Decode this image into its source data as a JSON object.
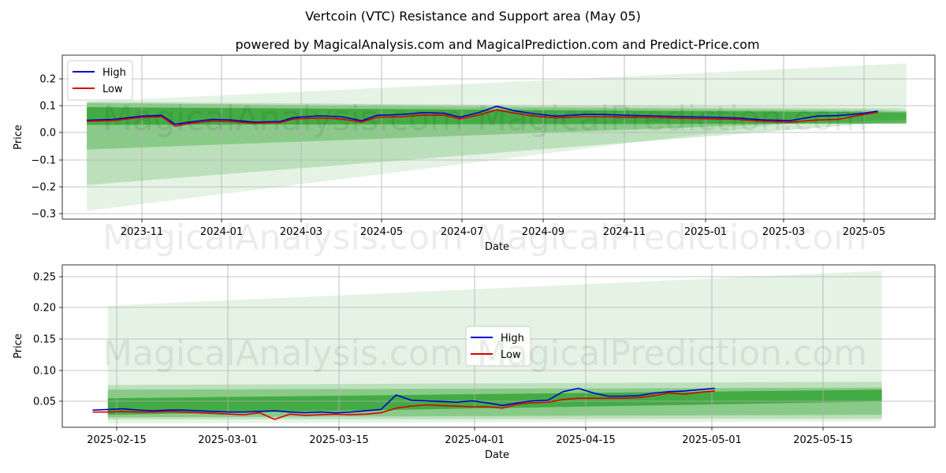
{
  "figure": {
    "title": "Vertcoin (VTC) Resistance and Support area (May 05)",
    "subtitle": "powered by MagicalAnalysis.com and MagicalPrediction.com and Predict-Price.com",
    "watermarks": [
      "MagicalAnalysis.com",
      "MagicalPrediction.com"
    ]
  },
  "colors": {
    "high": "#0000cc",
    "low": "#dd0000",
    "band": "#2ca02c",
    "grid": "#b0b0b0"
  },
  "chart_data": [
    {
      "type": "line",
      "xlabel": "Date",
      "ylabel": "Price",
      "x_tick_labels": [
        "2023-11",
        "2024-01",
        "2024-03",
        "2024-05",
        "2024-07",
        "2024-09",
        "2024-11",
        "2025-01",
        "2025-03",
        "2025-05"
      ],
      "y_tick_labels": [
        "0.2",
        "0.1",
        "0.0",
        "−0.1",
        "−0.2",
        "−0.3"
      ],
      "xlim": [
        "2023-09-13",
        "2025-06-15"
      ],
      "ylim": [
        -0.315,
        0.285
      ],
      "legend": {
        "position": "upper-left",
        "entries": [
          "High",
          "Low"
        ]
      },
      "grid": true,
      "series": [
        {
          "name": "High",
          "x": [
            "2023-10-01",
            "2023-10-20",
            "2023-11-10",
            "2023-11-25",
            "2023-12-05",
            "2023-12-15",
            "2024-01-01",
            "2024-01-15",
            "2024-02-01",
            "2024-02-20",
            "2024-03-01",
            "2024-03-20",
            "2024-04-05",
            "2024-04-20",
            "2024-05-01",
            "2024-05-20",
            "2024-06-05",
            "2024-06-20",
            "2024-07-01",
            "2024-07-15",
            "2024-07-28",
            "2024-08-10",
            "2024-08-25",
            "2024-09-10",
            "2024-09-30",
            "2024-10-15",
            "2024-11-01",
            "2024-11-20",
            "2024-12-10",
            "2025-01-01",
            "2025-01-20",
            "2025-02-10",
            "2025-03-01",
            "2025-03-20",
            "2025-04-05",
            "2025-04-20",
            "2025-05-04"
          ],
          "values": [
            0.047,
            0.05,
            0.062,
            0.065,
            0.032,
            0.04,
            0.05,
            0.048,
            0.04,
            0.042,
            0.057,
            0.063,
            0.06,
            0.045,
            0.065,
            0.068,
            0.075,
            0.072,
            0.058,
            0.075,
            0.098,
            0.082,
            0.07,
            0.062,
            0.068,
            0.068,
            0.065,
            0.063,
            0.06,
            0.058,
            0.055,
            0.048,
            0.046,
            0.062,
            0.064,
            0.07,
            0.08
          ]
        },
        {
          "name": "Low",
          "x": [
            "2023-10-01",
            "2023-10-20",
            "2023-11-10",
            "2023-11-25",
            "2023-12-05",
            "2023-12-15",
            "2024-01-01",
            "2024-01-15",
            "2024-02-01",
            "2024-02-20",
            "2024-03-01",
            "2024-03-20",
            "2024-04-05",
            "2024-04-20",
            "2024-05-01",
            "2024-05-20",
            "2024-06-05",
            "2024-06-20",
            "2024-07-01",
            "2024-07-15",
            "2024-07-28",
            "2024-08-10",
            "2024-08-25",
            "2024-09-10",
            "2024-09-30",
            "2024-10-15",
            "2024-11-01",
            "2024-11-20",
            "2024-12-10",
            "2025-01-01",
            "2025-01-20",
            "2025-02-10",
            "2025-03-01",
            "2025-03-20",
            "2025-04-05",
            "2025-04-20",
            "2025-05-04"
          ],
          "values": [
            0.043,
            0.046,
            0.057,
            0.06,
            0.025,
            0.035,
            0.044,
            0.042,
            0.036,
            0.038,
            0.052,
            0.055,
            0.052,
            0.04,
            0.058,
            0.06,
            0.066,
            0.065,
            0.052,
            0.066,
            0.085,
            0.073,
            0.062,
            0.056,
            0.06,
            0.06,
            0.058,
            0.057,
            0.054,
            0.052,
            0.05,
            0.043,
            0.04,
            0.048,
            0.05,
            0.065,
            0.076
          ]
        }
      ],
      "bands": [
        {
          "start": "2023-10-01",
          "end": "2025-05-25",
          "upper": [
            0.115,
            0.255
          ],
          "lower": [
            -0.285,
            0.09
          ]
        },
        {
          "start": "2023-10-01",
          "end": "2025-05-25",
          "upper": [
            0.115,
            0.09
          ],
          "lower": [
            -0.19,
            0.045
          ]
        },
        {
          "start": "2023-10-01",
          "end": "2025-05-25",
          "upper": [
            0.11,
            0.082
          ],
          "lower": [
            -0.06,
            0.05
          ]
        },
        {
          "start": "2023-10-01",
          "end": "2025-05-25",
          "upper": [
            0.095,
            0.076
          ],
          "lower": [
            0.03,
            0.035
          ]
        }
      ]
    },
    {
      "type": "line",
      "xlabel": "Date",
      "ylabel": "Price",
      "x_tick_labels": [
        "2025-02-15",
        "2025-03-01",
        "2025-03-15",
        "2025-04-01",
        "2025-04-15",
        "2025-05-01",
        "2025-05-15"
      ],
      "y_tick_labels": [
        "0.25",
        "0.20",
        "0.15",
        "0.10",
        "0.05"
      ],
      "xlim": [
        "2025-02-06",
        "2025-06-01"
      ],
      "ylim": [
        0.021,
        0.267
      ],
      "legend": {
        "position": "center",
        "entries": [
          "High",
          "Low"
        ]
      },
      "grid": true,
      "series": [
        {
          "name": "High",
          "x": [
            "2025-02-10",
            "2025-02-12",
            "2025-02-14",
            "2025-02-16",
            "2025-02-18",
            "2025-02-20",
            "2025-02-22",
            "2025-02-24",
            "2025-02-26",
            "2025-02-28",
            "2025-03-02",
            "2025-03-04",
            "2025-03-06",
            "2025-03-08",
            "2025-03-10",
            "2025-03-12",
            "2025-03-14",
            "2025-03-16",
            "2025-03-18",
            "2025-03-20",
            "2025-03-22",
            "2025-03-24",
            "2025-03-26",
            "2025-03-28",
            "2025-03-30",
            "2025-04-01",
            "2025-04-03",
            "2025-04-05",
            "2025-04-07",
            "2025-04-09",
            "2025-04-11",
            "2025-04-13",
            "2025-04-15",
            "2025-04-17",
            "2025-04-19",
            "2025-04-21",
            "2025-04-23",
            "2025-04-25",
            "2025-04-27",
            "2025-04-29",
            "2025-05-01",
            "2025-05-03"
          ],
          "values": [
            0.047,
            0.048,
            0.049,
            0.047,
            0.046,
            0.047,
            0.047,
            0.046,
            0.045,
            0.044,
            0.044,
            0.045,
            0.046,
            0.044,
            0.043,
            0.044,
            0.043,
            0.044,
            0.046,
            0.048,
            0.07,
            0.062,
            0.061,
            0.06,
            0.059,
            0.061,
            0.058,
            0.054,
            0.058,
            0.061,
            0.062,
            0.075,
            0.08,
            0.073,
            0.068,
            0.068,
            0.069,
            0.073,
            0.075,
            0.076,
            0.078,
            0.08
          ]
        },
        {
          "name": "Low",
          "x": [
            "2025-02-10",
            "2025-02-12",
            "2025-02-14",
            "2025-02-16",
            "2025-02-18",
            "2025-02-20",
            "2025-02-22",
            "2025-02-24",
            "2025-02-26",
            "2025-02-28",
            "2025-03-02",
            "2025-03-04",
            "2025-03-06",
            "2025-03-08",
            "2025-03-10",
            "2025-03-12",
            "2025-03-14",
            "2025-03-16",
            "2025-03-18",
            "2025-03-20",
            "2025-03-22",
            "2025-03-24",
            "2025-03-26",
            "2025-03-28",
            "2025-03-30",
            "2025-04-01",
            "2025-04-03",
            "2025-04-05",
            "2025-04-07",
            "2025-04-09",
            "2025-04-11",
            "2025-04-13",
            "2025-04-15",
            "2025-04-17",
            "2025-04-19",
            "2025-04-21",
            "2025-04-23",
            "2025-04-25",
            "2025-04-27",
            "2025-04-29",
            "2025-05-01",
            "2025-05-03"
          ],
          "values": [
            0.044,
            0.044,
            0.045,
            0.044,
            0.044,
            0.045,
            0.044,
            0.043,
            0.042,
            0.041,
            0.04,
            0.043,
            0.033,
            0.041,
            0.039,
            0.04,
            0.041,
            0.04,
            0.041,
            0.043,
            0.05,
            0.053,
            0.055,
            0.054,
            0.053,
            0.052,
            0.052,
            0.05,
            0.056,
            0.058,
            0.059,
            0.063,
            0.065,
            0.065,
            0.065,
            0.065,
            0.066,
            0.069,
            0.073,
            0.071,
            0.074,
            0.076
          ]
        }
      ],
      "bands": [
        {
          "start": "2025-02-12",
          "end": "2025-05-25",
          "upper": [
            0.205,
            0.258
          ],
          "lower": [
            0.027,
            0.03
          ]
        },
        {
          "start": "2025-02-12",
          "end": "2025-05-25",
          "upper": [
            0.085,
            0.09
          ],
          "lower": [
            0.033,
            0.034
          ]
        },
        {
          "start": "2025-02-12",
          "end": "2025-05-25",
          "upper": [
            0.078,
            0.081
          ],
          "lower": [
            0.036,
            0.04
          ]
        },
        {
          "start": "2025-02-12",
          "end": "2025-05-25",
          "upper": [
            0.065,
            0.078
          ],
          "lower": [
            0.04,
            0.06
          ]
        }
      ]
    }
  ]
}
